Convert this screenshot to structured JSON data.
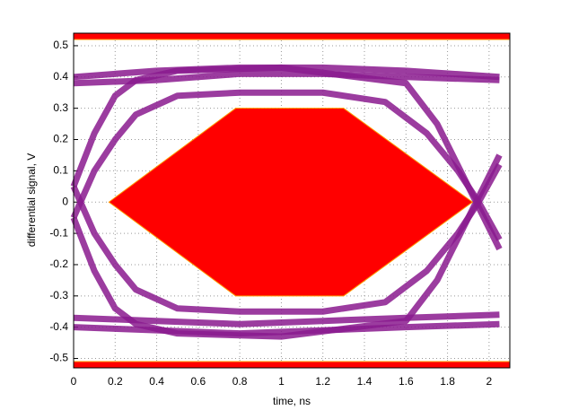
{
  "chart_data": {
    "type": "line",
    "xlabel": "time, ns",
    "ylabel": "differential signal, V",
    "xlim": [
      0,
      2.1
    ],
    "ylim": [
      -0.53,
      0.54
    ],
    "xticks": [
      0,
      0.2,
      0.4,
      0.6,
      0.8,
      1,
      1.2,
      1.4,
      1.6,
      1.8,
      2
    ],
    "yticks": [
      -0.5,
      -0.4,
      -0.3,
      -0.2,
      -0.1,
      0,
      0.1,
      0.2,
      0.3,
      0.4,
      0.5
    ],
    "grid": true,
    "series": [
      {
        "color": "#8a1a8e",
        "x": [
          0,
          0.4,
          0.8,
          1.2,
          1.6,
          2.05
        ],
        "values": [
          0.4,
          0.42,
          0.43,
          0.43,
          0.42,
          0.4
        ]
      },
      {
        "color": "#8a1a8e",
        "x": [
          0,
          0.4,
          0.8,
          1.2,
          1.6,
          2.05
        ],
        "values": [
          0.38,
          0.39,
          0.41,
          0.41,
          0.4,
          0.39
        ]
      },
      {
        "color": "#8a1a8e",
        "x": [
          0,
          0.4,
          0.8,
          1.2,
          1.6,
          2.05
        ],
        "values": [
          -0.4,
          -0.41,
          -0.42,
          -0.41,
          -0.4,
          -0.39
        ]
      },
      {
        "color": "#8a1a8e",
        "x": [
          0,
          0.4,
          0.8,
          1.2,
          1.6,
          2.05
        ],
        "values": [
          -0.37,
          -0.38,
          -0.39,
          -0.38,
          -0.37,
          -0.36
        ]
      },
      {
        "color": "#8a1a8e",
        "x": [
          0,
          0.1,
          0.2,
          0.3,
          0.5,
          0.8,
          1.2,
          1.5,
          1.7,
          1.85,
          1.95,
          2.05
        ],
        "values": [
          -0.05,
          0.1,
          0.2,
          0.28,
          0.34,
          0.35,
          0.35,
          0.32,
          0.22,
          0.1,
          0,
          -0.12
        ]
      },
      {
        "color": "#8a1a8e",
        "x": [
          0,
          0.1,
          0.2,
          0.3,
          0.5,
          0.8,
          1.2,
          1.5,
          1.7,
          1.85,
          1.95,
          2.05
        ],
        "values": [
          0.05,
          -0.1,
          -0.2,
          -0.28,
          -0.34,
          -0.35,
          -0.35,
          -0.32,
          -0.22,
          -0.1,
          0,
          0.12
        ]
      },
      {
        "color": "#8a1a8e",
        "x": [
          0,
          0.1,
          0.2,
          0.3,
          0.5,
          1.0,
          1.6,
          1.75,
          1.9,
          2.05
        ],
        "values": [
          0.05,
          0.22,
          0.34,
          0.39,
          0.42,
          0.43,
          0.38,
          0.25,
          0.05,
          -0.15
        ]
      },
      {
        "color": "#8a1a8e",
        "x": [
          0,
          0.1,
          0.2,
          0.3,
          0.5,
          1.0,
          1.6,
          1.75,
          1.9,
          2.05
        ],
        "values": [
          -0.05,
          -0.22,
          -0.34,
          -0.39,
          -0.42,
          -0.43,
          -0.38,
          -0.25,
          -0.05,
          0.15
        ]
      }
    ],
    "masks": [
      {
        "color": "#ff0000",
        "x": [
          0.17,
          0.78,
          1.3,
          1.92,
          1.3,
          0.78
        ],
        "y": [
          0,
          0.3,
          0.3,
          0,
          -0.3,
          -0.3
        ]
      },
      {
        "color": "#ff0000",
        "x": [
          0,
          2.1,
          2.1,
          0
        ],
        "y": [
          0.54,
          0.54,
          0.52,
          0.52
        ]
      },
      {
        "color": "#ff0000",
        "x": [
          0,
          2.1,
          2.1,
          0
        ],
        "y": [
          -0.51,
          -0.51,
          -0.53,
          -0.53
        ]
      }
    ]
  }
}
